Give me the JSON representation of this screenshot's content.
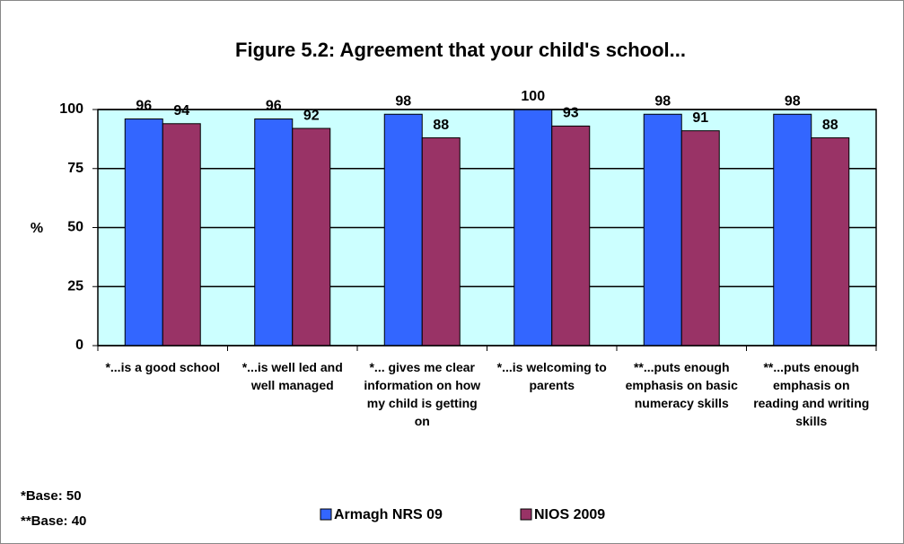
{
  "chart_data": {
    "type": "bar",
    "title": "Figure 5.2: Agreement that your child's school...",
    "y_label": "%",
    "categories": [
      "*...is a good school",
      "*...is well led and well managed",
      "*... gives me clear information on how my child is getting on",
      "*...is welcoming to parents",
      "**...puts enough emphasis on basic numeracy skills",
      "**...puts enough emphasis on reading and writing skills"
    ],
    "series": [
      {
        "name": "Armagh NRS 09",
        "color": "#3366ff",
        "values": [
          96,
          96,
          98,
          100,
          98,
          98
        ]
      },
      {
        "name": "NIOS 2009",
        "color": "#993366",
        "values": [
          94,
          92,
          88,
          93,
          91,
          88
        ]
      }
    ],
    "ylim": [
      0,
      100
    ],
    "yticks": [
      0,
      25,
      50,
      75,
      100
    ],
    "grid": true,
    "plot_background": "#ccffff",
    "annotations": [
      "*Base:  50",
      "**Base: 40"
    ]
  }
}
